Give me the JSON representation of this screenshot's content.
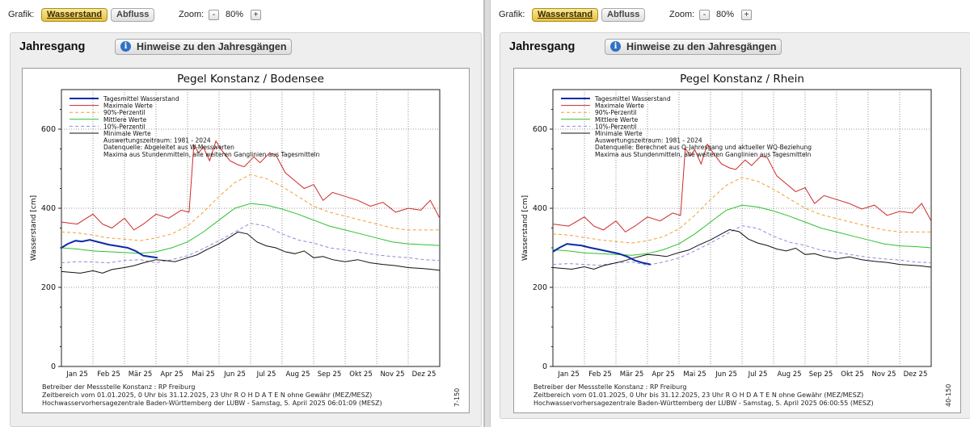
{
  "left": {
    "toolbar": {
      "grafik_label": "Grafik:",
      "tab_wasserstand": "Wasserstand",
      "tab_abfluss": "Abfluss",
      "zoom_label": "Zoom:",
      "zoom_minus": "-",
      "zoom_value": "80%",
      "zoom_plus": "+"
    },
    "section_title": "Jahresgang",
    "hint_button": "Hinweise zu den Jahresgängen",
    "info_icon_glyph": "i",
    "chart_data": {
      "type": "line",
      "title": "Pegel Konstanz / Bodensee",
      "ylabel": "Wasserstand [cm]",
      "ylim": [
        0,
        700
      ],
      "yticks": [
        "0",
        "200",
        "400",
        "600"
      ],
      "categories": [
        "Jan 25",
        "Feb 25",
        "Mär 25",
        "Apr 25",
        "Mai 25",
        "Jun 25",
        "Jul 25",
        "Aug 25",
        "Sep 25",
        "Okt 25",
        "Nov 25",
        "Dez 25"
      ],
      "legend_position": "top-left",
      "legend_notes": [
        "Auswertungszeitraum: 1981 - 2024",
        "Datenquelle: Abgeleitet aus W-Messwerten",
        "Maxima aus Stundenmitteln, alle weiteren Ganglinien aus Tagesmitteln"
      ],
      "series": [
        {
          "name": "Tagesmittel Wasserstand",
          "color": "#0a2aa8",
          "dash": "",
          "width": 2,
          "x": [
            0,
            0.2,
            0.45,
            0.65,
            0.9,
            1.2,
            1.5,
            1.8,
            2.1,
            2.35,
            2.6,
            2.85,
            3.05
          ],
          "values": [
            300,
            310,
            318,
            316,
            320,
            314,
            308,
            304,
            300,
            292,
            280,
            277,
            275
          ]
        },
        {
          "name": "Maximale Werte",
          "color": "#cc2a2a",
          "dash": "",
          "width": 1,
          "x": [
            0,
            0.5,
            1,
            1.3,
            1.6,
            2,
            2.3,
            2.6,
            3,
            3.4,
            3.8,
            4.05,
            4.2,
            4.35,
            4.5,
            4.7,
            4.9,
            5.1,
            5.35,
            5.6,
            5.8,
            6.1,
            6.3,
            6.6,
            6.8,
            7.1,
            7.4,
            7.7,
            8,
            8.3,
            8.6,
            9,
            9.4,
            9.8,
            10.2,
            10.6,
            11,
            11.4,
            11.7,
            12
          ],
          "values": [
            365,
            360,
            385,
            360,
            350,
            375,
            345,
            360,
            385,
            375,
            395,
            390,
            560,
            540,
            555,
            520,
            570,
            545,
            520,
            510,
            505,
            530,
            515,
            540,
            535,
            490,
            470,
            450,
            460,
            420,
            440,
            430,
            420,
            405,
            415,
            390,
            400,
            395,
            420,
            375
          ]
        },
        {
          "name": "90%-Perzentil",
          "color": "#f0a030",
          "dash": "4,3",
          "width": 1,
          "x": [
            0,
            0.5,
            1,
            1.5,
            2,
            2.5,
            3,
            3.5,
            4,
            4.5,
            5,
            5.5,
            6,
            6.5,
            7,
            7.5,
            8,
            8.5,
            9,
            9.5,
            10,
            10.5,
            11,
            11.5,
            12
          ],
          "values": [
            340,
            338,
            332,
            325,
            322,
            318,
            325,
            335,
            355,
            390,
            430,
            465,
            485,
            475,
            455,
            430,
            405,
            390,
            380,
            370,
            360,
            350,
            345,
            345,
            345
          ]
        },
        {
          "name": "Mittlere Werte",
          "color": "#2fc02f",
          "dash": "",
          "width": 1,
          "x": [
            0,
            0.5,
            1,
            1.5,
            2,
            2.5,
            3,
            3.5,
            4,
            4.5,
            5,
            5.5,
            6,
            6.5,
            7,
            7.5,
            8,
            8.5,
            9,
            9.5,
            10,
            10.5,
            11,
            11.5,
            12
          ],
          "values": [
            300,
            297,
            292,
            290,
            288,
            286,
            290,
            300,
            315,
            340,
            370,
            400,
            412,
            408,
            398,
            385,
            370,
            355,
            345,
            335,
            325,
            315,
            310,
            308,
            306
          ]
        },
        {
          "name": "10%-Perzentil",
          "color": "#8a8ae0",
          "dash": "4,3",
          "width": 1,
          "x": [
            0,
            0.5,
            1,
            1.5,
            2,
            2.5,
            3,
            3.5,
            4,
            4.5,
            5,
            5.5,
            6,
            6.5,
            7,
            7.5,
            8,
            8.5,
            9,
            9.5,
            10,
            10.5,
            11,
            11.5,
            12
          ],
          "values": [
            262,
            265,
            264,
            262,
            268,
            270,
            262,
            270,
            280,
            298,
            318,
            340,
            362,
            355,
            335,
            320,
            312,
            300,
            295,
            288,
            282,
            278,
            275,
            270,
            268
          ]
        },
        {
          "name": "Minimale Werte",
          "color": "#111111",
          "dash": "",
          "width": 1,
          "x": [
            0,
            0.3,
            0.6,
            1,
            1.3,
            1.6,
            2,
            2.3,
            2.6,
            3,
            3.3,
            3.6,
            4,
            4.3,
            4.6,
            5,
            5.3,
            5.6,
            5.9,
            6.2,
            6.5,
            6.8,
            7.1,
            7.4,
            7.7,
            8,
            8.3,
            8.6,
            9,
            9.4,
            9.8,
            10.2,
            10.6,
            11,
            11.4,
            11.7,
            12
          ],
          "values": [
            240,
            238,
            236,
            242,
            236,
            245,
            250,
            255,
            262,
            270,
            268,
            265,
            275,
            282,
            295,
            310,
            325,
            340,
            335,
            315,
            305,
            300,
            290,
            285,
            292,
            275,
            278,
            270,
            265,
            270,
            262,
            258,
            255,
            250,
            248,
            246,
            243
          ]
        }
      ]
    },
    "footer": {
      "line1": "Betreiber der Messstelle Konstanz : RP Freiburg",
      "line2": "Zeitbereich vom 01.01.2025, 0 Uhr bis 31.12.2025, 23 Uhr    R O H D A T E N ohne Gewähr (MEZ/MESZ)",
      "line3": "Hochwasservorhersagezentrale Baden-Württemberg der LUBW - Samstag, 5. April 2025 06:01:09 (MESZ)",
      "side_code": "7-150"
    }
  },
  "right": {
    "toolbar": {
      "grafik_label": "Grafik:",
      "tab_wasserstand": "Wasserstand",
      "tab_abfluss": "Abfluss",
      "zoom_label": "Zoom:",
      "zoom_minus": "-",
      "zoom_value": "80%",
      "zoom_plus": "+"
    },
    "section_title": "Jahresgang",
    "hint_button": "Hinweise zu den Jahresgängen",
    "info_icon_glyph": "i",
    "chart_data": {
      "type": "line",
      "title": "Pegel Konstanz / Rhein",
      "ylabel": "Wasserstand [cm]",
      "ylim": [
        0,
        700
      ],
      "yticks": [
        "0",
        "200",
        "400",
        "600"
      ],
      "categories": [
        "Jan 25",
        "Feb 25",
        "Mär 25",
        "Apr 25",
        "Mai 25",
        "Jun 25",
        "Jul 25",
        "Aug 25",
        "Sep 25",
        "Okt 25",
        "Nov 25",
        "Dez 25"
      ],
      "legend_position": "top-left",
      "legend_notes": [
        "Auswertungszeitraum: 1981 - 2024",
        "Datenquelle: Berechnet aus Q-Jahresgang und aktueller WQ-Beziehung",
        "Maxima aus Stundenmitteln, alle weiteren Ganglinien aus Tagesmitteln"
      ],
      "series": [
        {
          "name": "Tagesmittel Wasserstand",
          "color": "#0a2aa8",
          "dash": "",
          "width": 2,
          "x": [
            0,
            0.2,
            0.45,
            0.65,
            0.9,
            1.2,
            1.5,
            1.8,
            2.1,
            2.35,
            2.6,
            2.85,
            3.1
          ],
          "values": [
            290,
            300,
            310,
            308,
            306,
            300,
            295,
            290,
            285,
            278,
            268,
            262,
            258
          ]
        },
        {
          "name": "Maximale Werte",
          "color": "#cc2a2a",
          "dash": "",
          "width": 1,
          "x": [
            0,
            0.5,
            1,
            1.3,
            1.6,
            2,
            2.3,
            2.6,
            3,
            3.4,
            3.8,
            4.05,
            4.2,
            4.35,
            4.5,
            4.7,
            4.9,
            5.1,
            5.35,
            5.6,
            5.8,
            6.1,
            6.3,
            6.6,
            6.8,
            7.1,
            7.4,
            7.7,
            8,
            8.3,
            8.6,
            9,
            9.4,
            9.8,
            10.2,
            10.6,
            11,
            11.4,
            11.7,
            12
          ],
          "values": [
            360,
            355,
            378,
            355,
            345,
            368,
            340,
            355,
            378,
            368,
            388,
            382,
            552,
            532,
            548,
            512,
            562,
            538,
            512,
            502,
            498,
            522,
            508,
            532,
            528,
            482,
            462,
            442,
            452,
            412,
            432,
            422,
            412,
            398,
            408,
            382,
            392,
            388,
            412,
            368
          ]
        },
        {
          "name": "90%-Perzentil",
          "color": "#f0a030",
          "dash": "4,3",
          "width": 1,
          "x": [
            0,
            0.5,
            1,
            1.5,
            2,
            2.5,
            3,
            3.5,
            4,
            4.5,
            5,
            5.5,
            6,
            6.5,
            7,
            7.5,
            8,
            8.5,
            9,
            9.5,
            10,
            10.5,
            11,
            11.5,
            12
          ],
          "values": [
            335,
            332,
            326,
            320,
            316,
            312,
            318,
            328,
            348,
            382,
            422,
            458,
            478,
            468,
            448,
            424,
            400,
            384,
            374,
            364,
            354,
            345,
            340,
            340,
            340
          ]
        },
        {
          "name": "Mittlere Werte",
          "color": "#2fc02f",
          "dash": "",
          "width": 1,
          "x": [
            0,
            0.5,
            1,
            1.5,
            2,
            2.5,
            3,
            3.5,
            4,
            4.5,
            5,
            5.5,
            6,
            6.5,
            7,
            7.5,
            8,
            8.5,
            9,
            9.5,
            10,
            10.5,
            11,
            11.5,
            12
          ],
          "values": [
            295,
            292,
            287,
            285,
            283,
            281,
            285,
            295,
            310,
            335,
            365,
            395,
            408,
            403,
            393,
            380,
            365,
            350,
            340,
            330,
            320,
            310,
            305,
            303,
            300
          ]
        },
        {
          "name": "10%-Perzentil",
          "color": "#8a8ae0",
          "dash": "4,3",
          "width": 1,
          "x": [
            0,
            0.5,
            1,
            1.5,
            2,
            2.5,
            3,
            3.5,
            4,
            4.5,
            5,
            5.5,
            6,
            6.5,
            7,
            7.5,
            8,
            8.5,
            9,
            9.5,
            10,
            10.5,
            11,
            11.5,
            12
          ],
          "values": [
            258,
            260,
            258,
            256,
            262,
            264,
            256,
            264,
            274,
            292,
            312,
            334,
            356,
            349,
            329,
            314,
            306,
            294,
            289,
            282,
            276,
            272,
            269,
            264,
            262
          ]
        },
        {
          "name": "Minimale Werte",
          "color": "#111111",
          "dash": "",
          "width": 1,
          "x": [
            0,
            0.3,
            0.6,
            1,
            1.3,
            1.6,
            2,
            2.3,
            2.6,
            3,
            3.3,
            3.6,
            4,
            4.3,
            4.6,
            5,
            5.3,
            5.6,
            5.9,
            6.2,
            6.5,
            6.8,
            7.1,
            7.4,
            7.7,
            8,
            8.3,
            8.6,
            9,
            9.4,
            9.8,
            10.2,
            10.6,
            11,
            11.4,
            11.7,
            12
          ],
          "values": [
            250,
            248,
            246,
            252,
            246,
            255,
            262,
            268,
            275,
            283,
            281,
            278,
            288,
            294,
            306,
            320,
            333,
            346,
            341,
            322,
            312,
            306,
            297,
            292,
            299,
            283,
            285,
            278,
            272,
            277,
            270,
            266,
            263,
            258,
            256,
            254,
            251
          ]
        }
      ]
    },
    "footer": {
      "line1": "Betreiber der Messstelle Konstanz : RP Freiburg",
      "line2": "Zeitbereich vom 01.01.2025, 0 Uhr bis 31.12.2025, 23 Uhr    R O H D A T E N ohne Gewähr (MEZ/MESZ)",
      "line3": "Hochwasservorhersagezentrale Baden-Württemberg der LUBW - Samstag, 5. April 2025 06:00:55 (MESZ)",
      "side_code": "40-150"
    }
  }
}
